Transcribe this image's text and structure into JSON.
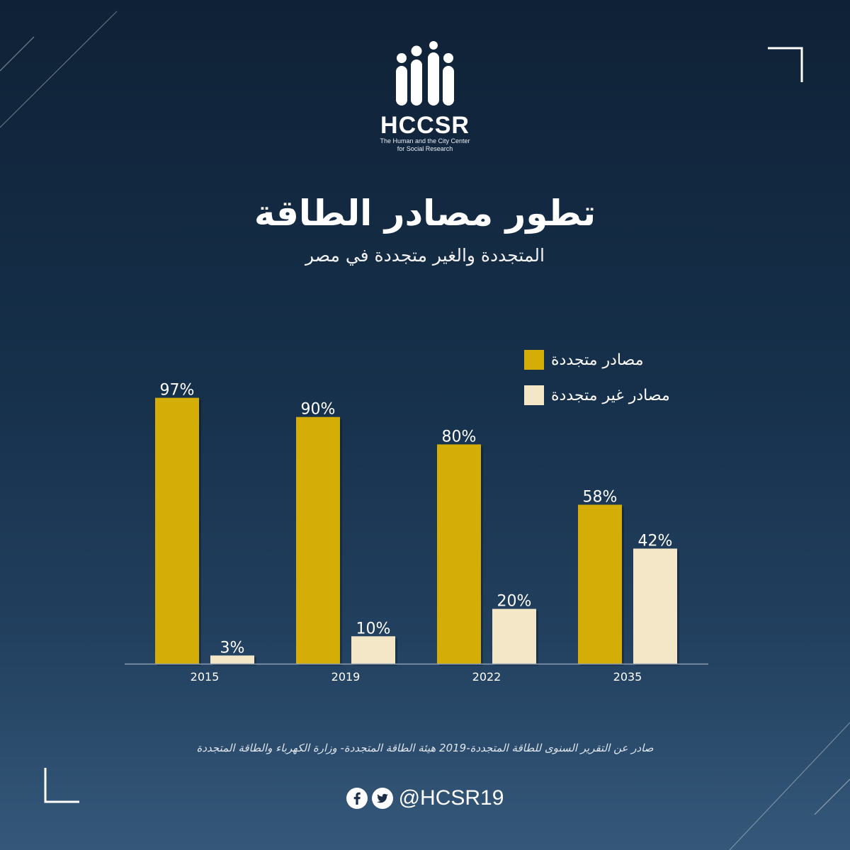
{
  "logo": {
    "name": "HCCSR",
    "line1": "The Human and the City Center",
    "line2": "for Social Research"
  },
  "header": {
    "title": "تطور مصادر الطاقة",
    "subtitle": "المتجددة والغير متجددة في مصر"
  },
  "chart_data": {
    "type": "bar",
    "categories": [
      "2015",
      "2019",
      "2022",
      "2035"
    ],
    "series": [
      {
        "name": "مصادر متجددة",
        "values": [
          97,
          90,
          80,
          58
        ],
        "labels": [
          "97%",
          "90%",
          "80%",
          "58%"
        ],
        "color": "#d4ae06"
      },
      {
        "name": "مصادر غير متجددة",
        "values": [
          3,
          10,
          20,
          42
        ],
        "labels": [
          "3%",
          "10%",
          "20%",
          "42%"
        ],
        "color": "#f3e7c8"
      }
    ],
    "ylim": [
      0,
      100
    ],
    "xlabel": "",
    "ylabel": "",
    "grid": false,
    "legend_position": "top-right",
    "axis_color": "#8a9db3"
  },
  "footer": {
    "source": "صادر عن التقرير السنوى للطاقة المتجددة-2019 هيئة الطاقة المتجددة- وزارة الكهرباء والطاقة المتجددة",
    "handle": "@HCSR19",
    "icons": [
      "facebook-icon",
      "twitter-icon"
    ]
  },
  "colors": {
    "background_top": "#0f2136",
    "background_bottom": "#35587a",
    "accent": "#d4ae06",
    "cream": "#f3e7c8"
  }
}
